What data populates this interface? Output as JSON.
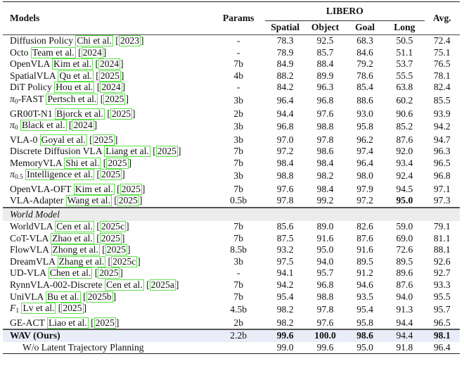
{
  "header": {
    "models": "Models",
    "params": "Params",
    "benchmark": "LIBERO",
    "columns": [
      "Spatial",
      "Object",
      "Goal",
      "Long"
    ],
    "avg": "Avg."
  },
  "baselines": [
    {
      "name": "Diffusion Policy",
      "author": "Chi et al.",
      "year": "2023",
      "params": "-",
      "spatial": "78.3",
      "object": "92.5",
      "goal": "68.3",
      "long": "50.5",
      "avg": "72.4"
    },
    {
      "name": "Octo",
      "author": "Team et al.",
      "year": "2024",
      "params": "-",
      "spatial": "78.9",
      "object": "85.7",
      "goal": "84.6",
      "long": "51.1",
      "avg": "75.1"
    },
    {
      "name": "OpenVLA",
      "author": "Kim et al.",
      "year": "2024",
      "params": "7b",
      "spatial": "84.9",
      "object": "88.4",
      "goal": "79.2",
      "long": "53.7",
      "avg": "76.5"
    },
    {
      "name": "SpatialVLA",
      "author": "Qu et al.",
      "year": "2025",
      "params": "4b",
      "spatial": "88.2",
      "object": "89.9",
      "goal": "78.6",
      "long": "55.5",
      "avg": "78.1"
    },
    {
      "name": "DiT Policy",
      "author": "Hou et al.",
      "year": "2024",
      "params": "-",
      "spatial": "84.2",
      "object": "96.3",
      "goal": "85.4",
      "long": "63.8",
      "avg": "82.4"
    },
    {
      "name": "π0-FAST",
      "name_base": "π",
      "name_sub": "0",
      "name_rest": "-FAST",
      "author": "Pertsch et al.",
      "year": "2025",
      "params": "3b",
      "spatial": "96.4",
      "object": "96.8",
      "goal": "88.6",
      "long": "60.2",
      "avg": "85.5"
    },
    {
      "name": "GR00T-N1",
      "author": "Bjorck et al.",
      "year": "2025",
      "params": "2b",
      "spatial": "94.4",
      "object": "97.6",
      "goal": "93.0",
      "long": "90.6",
      "avg": "93.9"
    },
    {
      "name": "π0",
      "name_base": "π",
      "name_sub": "0",
      "name_rest": "",
      "author": "Black et al.",
      "year": "2024",
      "params": "3b",
      "spatial": "96.8",
      "object": "98.8",
      "goal": "95.8",
      "long": "85.2",
      "avg": "94.2"
    },
    {
      "name": "VLA-0",
      "author": "Goyal et al.",
      "year": "2025",
      "params": "3b",
      "spatial": "97.0",
      "object": "97.8",
      "goal": "96.2",
      "long": "87.6",
      "avg": "94.7"
    },
    {
      "name": "Discrete Diffusion VLA",
      "author": "Liang et al.",
      "year": "2025",
      "params": "7b",
      "spatial": "97.2",
      "object": "98.6",
      "goal": "97.4",
      "long": "92.0",
      "avg": "96.3"
    },
    {
      "name": "MemoryVLA",
      "author": "Shi et al.",
      "year": "2025",
      "params": "7b",
      "spatial": "98.4",
      "object": "98.4",
      "goal": "96.4",
      "long": "93.4",
      "avg": "96.5"
    },
    {
      "name": "π0.5",
      "name_base": "π",
      "name_sub": "0.5",
      "name_rest": "",
      "author": "Intelligence et al.",
      "year": "2025",
      "params": "3b",
      "spatial": "98.8",
      "object": "98.2",
      "goal": "98.0",
      "long": "92.4",
      "avg": "96.8"
    },
    {
      "name": "OpenVLA-OFT",
      "author": "Kim et al.",
      "year": "2025",
      "params": "7b",
      "spatial": "97.6",
      "object": "98.4",
      "goal": "97.9",
      "long": "94.5",
      "avg": "97.1"
    },
    {
      "name": "VLA-Adapter",
      "author": "Wang et al.",
      "year": "2025",
      "params": "0.5b",
      "spatial": "97.8",
      "object": "99.2",
      "goal": "97.2",
      "long": "95.0",
      "long_bold": true,
      "avg": "97.3"
    }
  ],
  "world_model_section": "World Model",
  "world_models": [
    {
      "name": "WorldVLA",
      "author": "Cen et al.",
      "year": "2025c",
      "params": "7b",
      "spatial": "85.6",
      "object": "89.0",
      "goal": "82.6",
      "long": "59.0",
      "avg": "79.1"
    },
    {
      "name": "CoT-VLA",
      "author": "Zhao et al.",
      "year": "2025",
      "params": "7b",
      "spatial": "87.5",
      "object": "91.6",
      "goal": "87.6",
      "long": "69.0",
      "avg": "81.1"
    },
    {
      "name": "FlowVLA",
      "author": "Zhong et al.",
      "year": "2025",
      "params": "8.5b",
      "spatial": "93.2",
      "object": "95.0",
      "goal": "91.6",
      "long": "72.6",
      "avg": "88.1"
    },
    {
      "name": "DreamVLA",
      "author": "Zhang et al.",
      "year": "2025c",
      "params": "3b",
      "spatial": "97.5",
      "object": "94.0",
      "goal": "89.5",
      "long": "89.5",
      "avg": "92.6"
    },
    {
      "name": "UD-VLA",
      "author": "Chen et al.",
      "year": "2025",
      "params": "-",
      "spatial": "94.1",
      "object": "95.7",
      "goal": "91.2",
      "long": "89.6",
      "avg": "92.7"
    },
    {
      "name": "RynnVLA-002-Discrete",
      "author": "Cen et al.",
      "year": "2025a",
      "params": "7b",
      "spatial": "94.2",
      "object": "96.8",
      "goal": "94.6",
      "long": "87.6",
      "avg": "93.3"
    },
    {
      "name": "UniVLA",
      "author": "Bu et al.",
      "year": "2025b",
      "params": "7b",
      "spatial": "95.4",
      "object": "98.8",
      "goal": "93.5",
      "long": "94.0",
      "avg": "95.5"
    },
    {
      "name": "F1",
      "name_base": "F",
      "name_sub": "1",
      "name_rest": "",
      "author": "Lv et al.",
      "year": "2025",
      "params": "4.5b",
      "spatial": "98.2",
      "object": "97.8",
      "goal": "95.4",
      "long": "91.3",
      "avg": "95.7"
    },
    {
      "name": "GE-ACT",
      "author": "Liao et al.",
      "year": "2025",
      "params": "2b",
      "spatial": "98.2",
      "object": "97.6",
      "goal": "95.8",
      "long": "94.4",
      "avg": "96.5"
    }
  ],
  "ours": {
    "name": "WAV (Ours)",
    "params": "2.2b",
    "spatial": "99.6",
    "object": "100.0",
    "goal": "98.6",
    "long": "94.4",
    "avg": "98.1"
  },
  "ablation": {
    "name": "W/o Latent Trajectory Planning",
    "params": "",
    "spatial": "99.0",
    "object": "99.6",
    "goal": "95.0",
    "long": "91.8",
    "avg": "96.4"
  },
  "colors": {
    "citation_box": "#5de14a",
    "section_bg": "#ececec",
    "ours_bg": "#e8edf8"
  },
  "chart_data": {
    "type": "table",
    "title": "LIBERO benchmark results",
    "columns": [
      "Models",
      "Params",
      "Spatial",
      "Object",
      "Goal",
      "Long",
      "Avg."
    ],
    "rows": [
      [
        "Diffusion Policy",
        "-",
        78.3,
        92.5,
        68.3,
        50.5,
        72.4
      ],
      [
        "Octo",
        "-",
        78.9,
        85.7,
        84.6,
        51.1,
        75.1
      ],
      [
        "OpenVLA",
        "7b",
        84.9,
        88.4,
        79.2,
        53.7,
        76.5
      ],
      [
        "SpatialVLA",
        "4b",
        88.2,
        89.9,
        78.6,
        55.5,
        78.1
      ],
      [
        "DiT Policy",
        "-",
        84.2,
        96.3,
        85.4,
        63.8,
        82.4
      ],
      [
        "π0-FAST",
        "3b",
        96.4,
        96.8,
        88.6,
        60.2,
        85.5
      ],
      [
        "GR00T-N1",
        "2b",
        94.4,
        97.6,
        93.0,
        90.6,
        93.9
      ],
      [
        "π0",
        "3b",
        96.8,
        98.8,
        95.8,
        85.2,
        94.2
      ],
      [
        "VLA-0",
        "3b",
        97.0,
        97.8,
        96.2,
        87.6,
        94.7
      ],
      [
        "Discrete Diffusion VLA",
        "7b",
        97.2,
        98.6,
        97.4,
        92.0,
        96.3
      ],
      [
        "MemoryVLA",
        "7b",
        98.4,
        98.4,
        96.4,
        93.4,
        96.5
      ],
      [
        "π0.5",
        "3b",
        98.8,
        98.2,
        98.0,
        92.4,
        96.8
      ],
      [
        "OpenVLA-OFT",
        "7b",
        97.6,
        98.4,
        97.9,
        94.5,
        97.1
      ],
      [
        "VLA-Adapter",
        "0.5b",
        97.8,
        99.2,
        97.2,
        95.0,
        97.3
      ],
      [
        "WorldVLA",
        "7b",
        85.6,
        89.0,
        82.6,
        59.0,
        79.1
      ],
      [
        "CoT-VLA",
        "7b",
        87.5,
        91.6,
        87.6,
        69.0,
        81.1
      ],
      [
        "FlowVLA",
        "8.5b",
        93.2,
        95.0,
        91.6,
        72.6,
        88.1
      ],
      [
        "DreamVLA",
        "3b",
        97.5,
        94.0,
        89.5,
        89.5,
        92.6
      ],
      [
        "UD-VLA",
        "-",
        94.1,
        95.7,
        91.2,
        89.6,
        92.7
      ],
      [
        "RynnVLA-002-Discrete",
        "7b",
        94.2,
        96.8,
        94.6,
        87.6,
        93.3
      ],
      [
        "UniVLA",
        "7b",
        95.4,
        98.8,
        93.5,
        94.0,
        95.5
      ],
      [
        "F1",
        "4.5b",
        98.2,
        97.8,
        95.4,
        91.3,
        95.7
      ],
      [
        "GE-ACT",
        "2b",
        98.2,
        97.6,
        95.8,
        94.4,
        96.5
      ],
      [
        "WAV (Ours)",
        "2.2b",
        99.6,
        100.0,
        98.6,
        94.4,
        98.1
      ],
      [
        "W/o Latent Trajectory Planning",
        "",
        99.0,
        99.6,
        95.0,
        91.8,
        96.4
      ]
    ]
  }
}
